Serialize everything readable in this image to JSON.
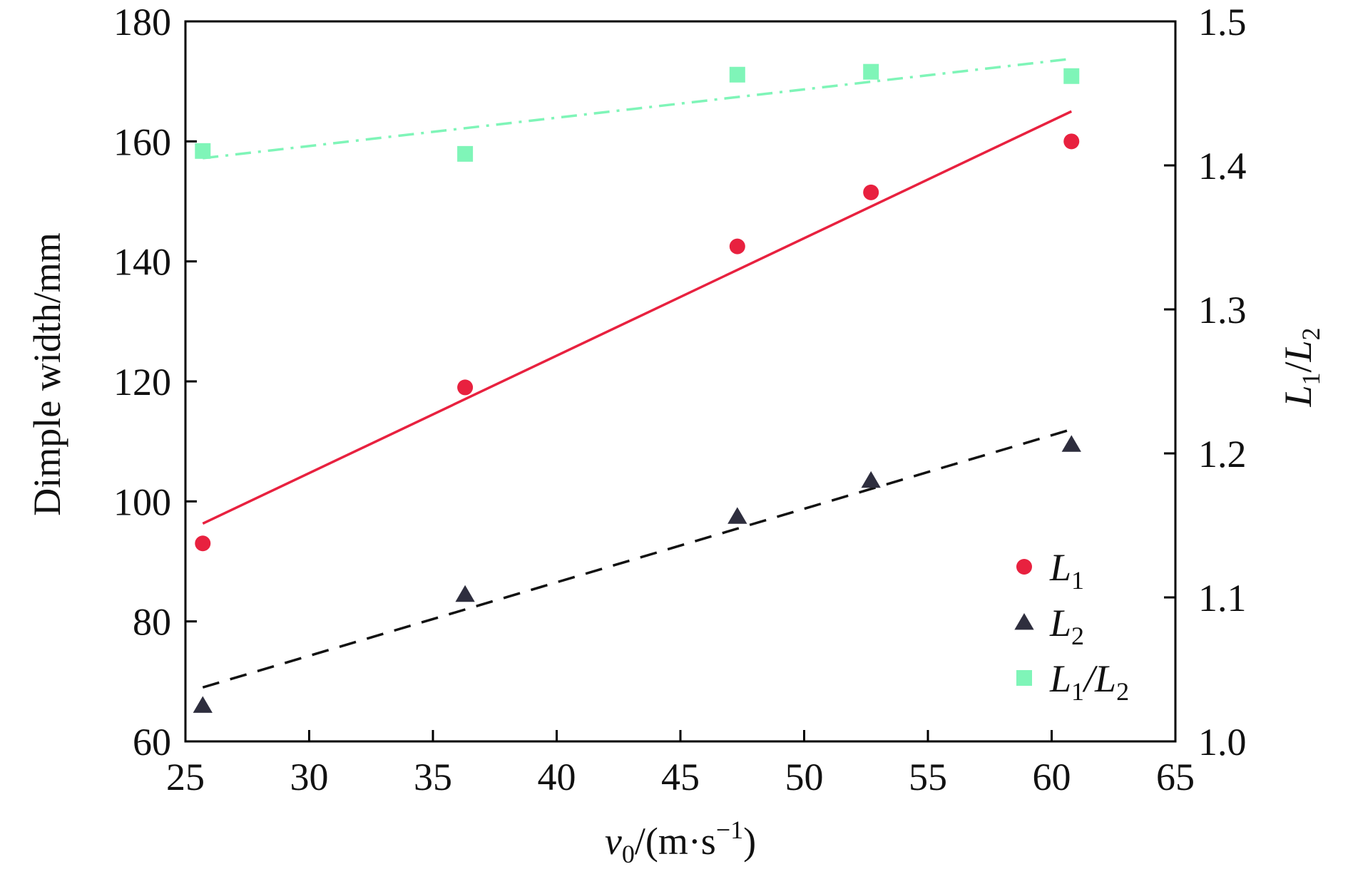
{
  "chart_data": {
    "type": "scatter",
    "xlabel": {
      "base": "v",
      "sub": "0",
      "rest": "/(m·s",
      "sup": "−1",
      "close": ")"
    },
    "ylabel_left": "Dimple width/mm",
    "ylabel_right": {
      "a": "L",
      "a_sub": "1",
      "slash": "/",
      "b": "L",
      "b_sub": "2"
    },
    "xlim": [
      25,
      65
    ],
    "ylim_left": [
      60,
      180
    ],
    "ylim_right": [
      1.0,
      1.5
    ],
    "x_ticks": [
      "25",
      "30",
      "35",
      "40",
      "45",
      "50",
      "55",
      "60",
      "65"
    ],
    "y_ticks_left": [
      "60",
      "80",
      "100",
      "120",
      "140",
      "160",
      "180"
    ],
    "y_ticks_right": [
      "1.0",
      "1.1",
      "1.2",
      "1.3",
      "1.4",
      "1.5"
    ],
    "legend_position": "bottom-right",
    "grid": false,
    "series": [
      {
        "name": "L1",
        "label": {
          "main": "L",
          "sub": "1",
          "extra": ""
        },
        "axis": "left",
        "marker": "circle",
        "color": "#e8213f",
        "x": [
          25.7,
          36.3,
          47.3,
          52.7,
          60.8
        ],
        "y": [
          93,
          119,
          142.5,
          151.5,
          160
        ],
        "fit": {
          "style": "solid",
          "color": "#e8213f",
          "x": [
            25.7,
            60.8
          ],
          "y": [
            96.3,
            165
          ]
        }
      },
      {
        "name": "L2",
        "label": {
          "main": "L",
          "sub": "2",
          "extra": ""
        },
        "axis": "left",
        "marker": "triangle",
        "color": "#2e2e3e",
        "x": [
          25.7,
          36.3,
          47.3,
          52.7,
          60.8
        ],
        "y": [
          66,
          84.5,
          97.5,
          103.5,
          109.5
        ],
        "fit": {
          "style": "dashed",
          "color": "#111111",
          "x": [
            25.7,
            60.8
          ],
          "y": [
            69,
            112
          ]
        }
      },
      {
        "name": "L1/L2",
        "label": {
          "main": "L",
          "sub": "1",
          "extra": "/L",
          "sub2": "2"
        },
        "axis": "right",
        "marker": "square",
        "color": "#7ff5b8",
        "x": [
          25.7,
          36.3,
          47.3,
          52.7,
          60.8
        ],
        "y": [
          1.41,
          1.408,
          1.463,
          1.465,
          1.462
        ],
        "fit": {
          "style": "dashdot",
          "color": "#7ff5b8",
          "x": [
            25.7,
            60.8
          ],
          "y": [
            1.405,
            1.474
          ]
        }
      }
    ]
  }
}
